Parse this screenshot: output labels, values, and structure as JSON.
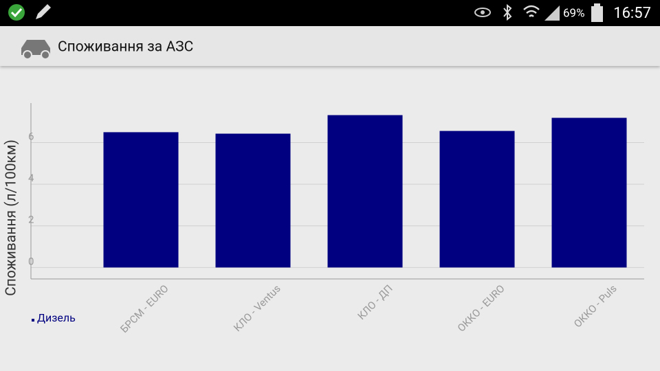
{
  "status_bar": {
    "battery": "69%",
    "time": "16:57"
  },
  "app_bar": {
    "title": "Споживання за АЗС"
  },
  "chart_data": {
    "type": "bar",
    "y_label": "Споживання (л/100км)",
    "categories": [
      "БРСМ - EURO",
      "КЛО - Ventus",
      "КЛО - ДП",
      "ОККО - EURO",
      "ОККО - Puls"
    ],
    "series": [
      {
        "name": "Дизель",
        "color": "#000080",
        "values": [
          6.5,
          6.43,
          7.32,
          6.56,
          7.19
        ]
      }
    ],
    "ylim": [
      -0.55,
      7.9
    ],
    "yticks": [
      0,
      2,
      4,
      6
    ],
    "grid": true
  }
}
